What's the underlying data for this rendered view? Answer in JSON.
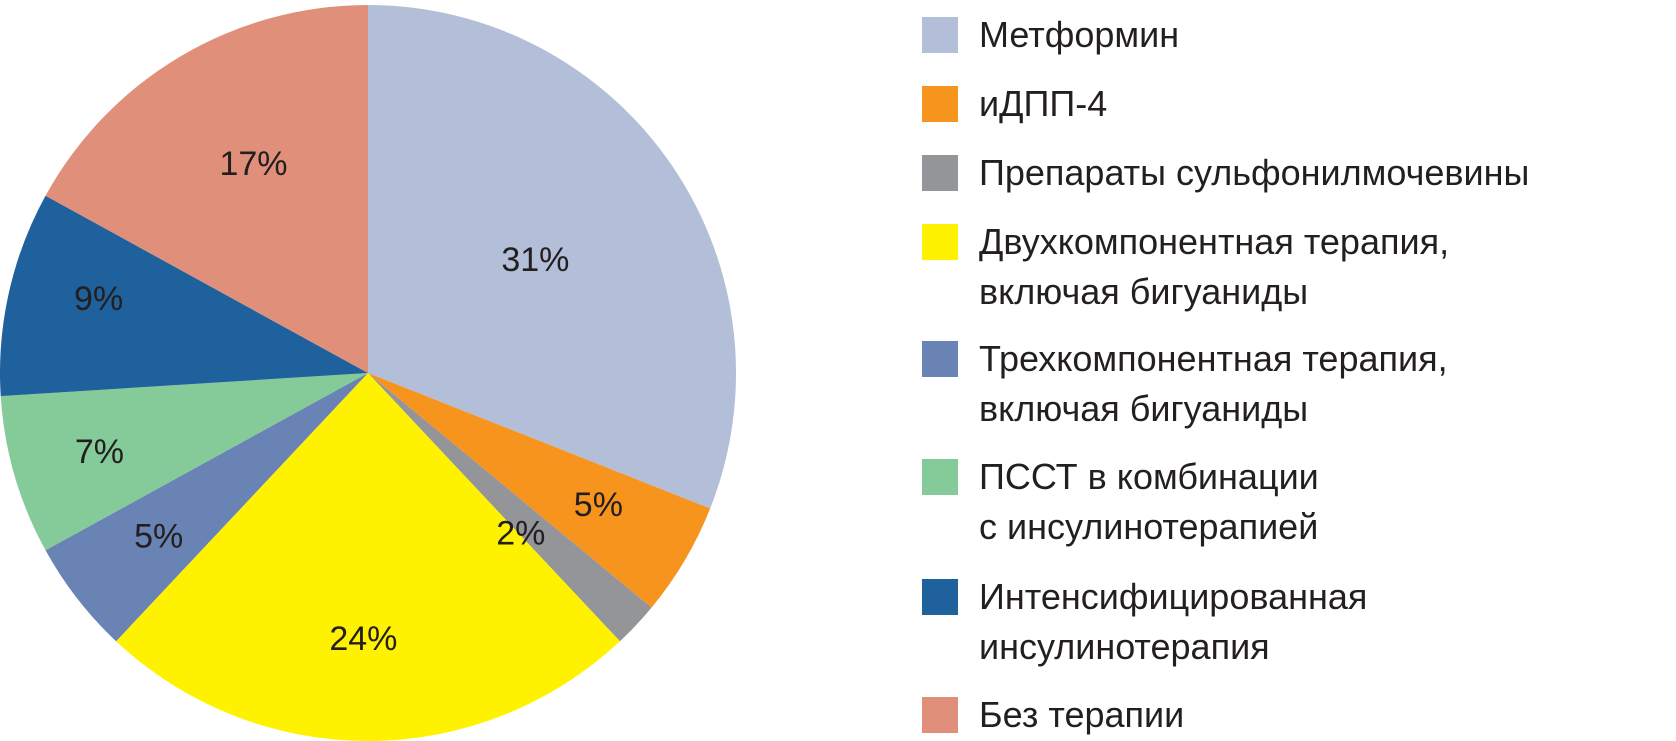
{
  "chart_data": {
    "type": "pie",
    "title": "",
    "slices": [
      {
        "name": "Метформин",
        "value": 31,
        "label": "31%",
        "color": "#b3bed8"
      },
      {
        "name": "иДПП-4",
        "value": 5,
        "label": "5%",
        "color": "#f7941d"
      },
      {
        "name": "Препараты сульфонилмочевины",
        "value": 2,
        "label": "2%",
        "color": "#949599"
      },
      {
        "name": "Двухкомпонентная терапия, включая бигуаниды",
        "value": 24,
        "label": "24%",
        "color": "#fff200"
      },
      {
        "name": "Трехкомпонентная терапия, включая бигуаниды",
        "value": 5,
        "label": "5%",
        "color": "#6983b4"
      },
      {
        "name": "ПССТ в комбинации с инсулинотерапией",
        "value": 7,
        "label": "7%",
        "color": "#85cb9a"
      },
      {
        "name": "Интенсифицированная инсулинотерапия",
        "value": 9,
        "label": "9%",
        "color": "#1f619c"
      },
      {
        "name": "Без терапии",
        "value": 17,
        "label": "17%",
        "color": "#e0907a"
      }
    ],
    "legend_position": "right"
  },
  "legend": {
    "items": [
      {
        "lines": [
          "Метформин"
        ]
      },
      {
        "lines": [
          "иДПП-4"
        ]
      },
      {
        "lines": [
          "Препараты сульфонилмочевины"
        ]
      },
      {
        "lines": [
          "Двухкомпонентная терапия,",
          "включая бигуаниды"
        ]
      },
      {
        "lines": [
          "Трехкомпонентная терапия,",
          "включая бигуаниды"
        ]
      },
      {
        "lines": [
          "ПССТ в комбинации",
          "с инсулинотерапией"
        ]
      },
      {
        "lines": [
          "Интенсифицированная",
          "инсулинотерапия"
        ]
      },
      {
        "lines": [
          "Без терапии"
        ]
      }
    ]
  }
}
